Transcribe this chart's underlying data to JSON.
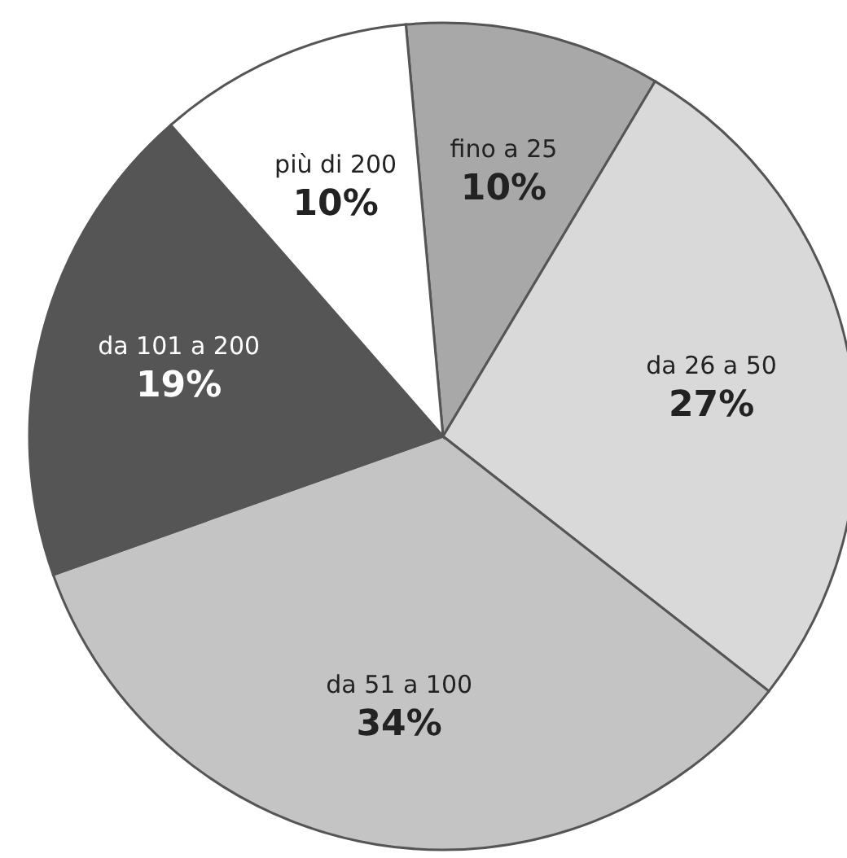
{
  "chart_data": {
    "type": "pie",
    "categories": [
      "fino a 25",
      "da 26 a 50",
      "da 51 a 100",
      "da 101 a 200",
      "più di 200"
    ],
    "values": [
      10,
      27,
      34,
      19,
      10
    ],
    "colors": [
      "#a8a8a8",
      "#d9d9d9",
      "#c4c4c4",
      "#555555",
      "#ffffff"
    ],
    "value_labels": [
      "10%",
      "27%",
      "34%",
      "19%",
      "10%"
    ]
  }
}
